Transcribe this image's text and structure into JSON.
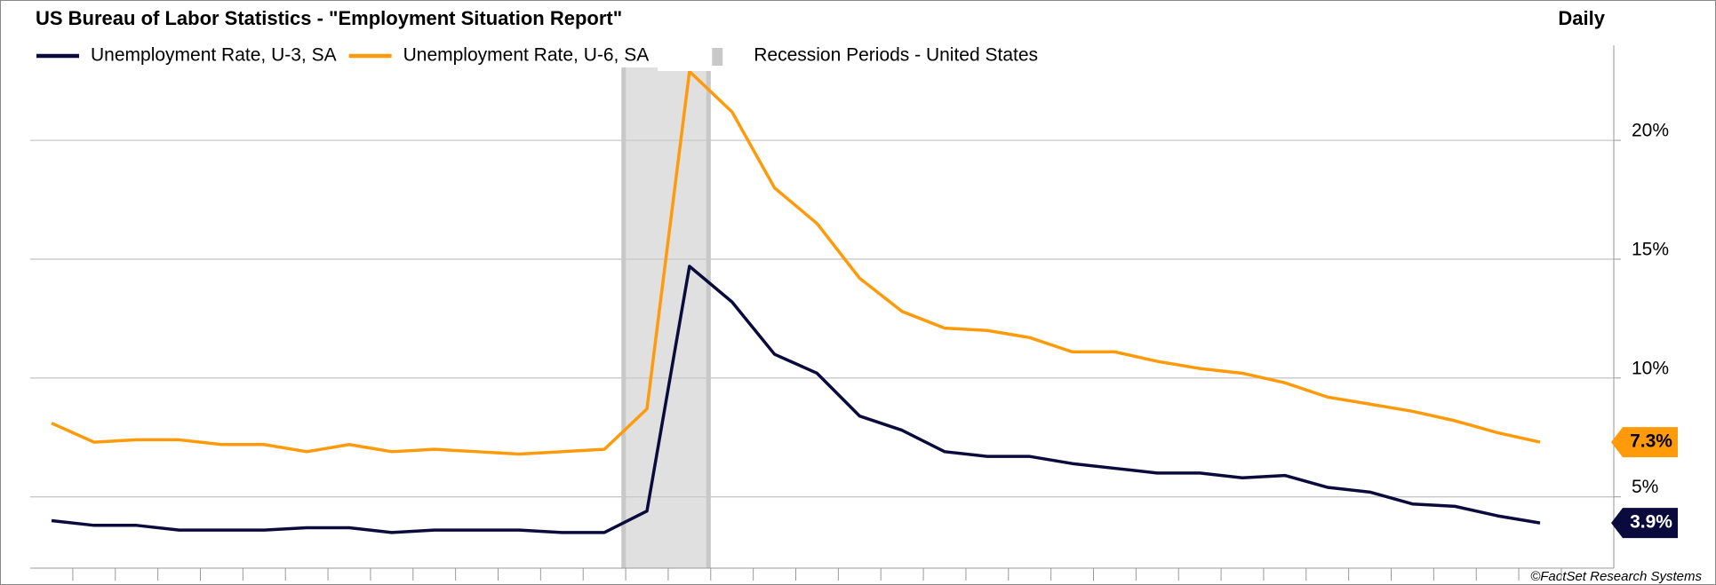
{
  "chart_data": {
    "type": "line",
    "title": "US Bureau of Labor Statistics - \"Employment Situation Report\"",
    "frequency": "Daily",
    "source": "©FactSet Research Systems",
    "categories": [
      null,
      null,
      null,
      null,
      null,
      null,
      null,
      null,
      null,
      null,
      null,
      null,
      null,
      null,
      null,
      null,
      null,
      null,
      null,
      null,
      null,
      null,
      null,
      null,
      null,
      null,
      null,
      null,
      null,
      null,
      null,
      null,
      null,
      null,
      null,
      null
    ],
    "series": [
      {
        "name": "Unemployment Rate, U-3, SA",
        "color": "#0a0a3c",
        "values": [
          4.0,
          3.8,
          3.8,
          3.6,
          3.6,
          3.6,
          3.7,
          3.7,
          3.5,
          3.6,
          3.6,
          3.6,
          3.5,
          3.5,
          4.4,
          14.7,
          13.2,
          11.0,
          10.2,
          8.4,
          7.8,
          6.9,
          6.7,
          6.7,
          6.4,
          6.2,
          6.0,
          6.0,
          5.8,
          5.9,
          5.4,
          5.2,
          4.7,
          4.6,
          4.2,
          3.9
        ],
        "last_label": "3.9%"
      },
      {
        "name": "Unemployment Rate, U-6, SA",
        "color": "#ff9a0a",
        "values": [
          8.1,
          7.3,
          7.4,
          7.4,
          7.2,
          7.2,
          6.9,
          7.2,
          6.9,
          7.0,
          6.9,
          6.8,
          6.9,
          7.0,
          8.7,
          22.9,
          21.2,
          18.0,
          16.5,
          14.2,
          12.8,
          12.1,
          12.0,
          11.7,
          11.1,
          11.1,
          10.7,
          10.4,
          10.2,
          9.8,
          9.2,
          8.9,
          8.6,
          8.2,
          7.7,
          7.3
        ],
        "last_label": "7.3%"
      }
    ],
    "shade": {
      "name": "Recession Periods - United States",
      "color": "#e0e0e0",
      "x": [
        13.4,
        15.5
      ]
    },
    "ylim": [
      2,
      24
    ],
    "yticks": [
      {
        "value": 5,
        "label": "5%"
      },
      {
        "value": 10,
        "label": "10%"
      },
      {
        "value": 15,
        "label": "15%"
      },
      {
        "value": 20,
        "label": "20%"
      }
    ],
    "grid": true
  }
}
